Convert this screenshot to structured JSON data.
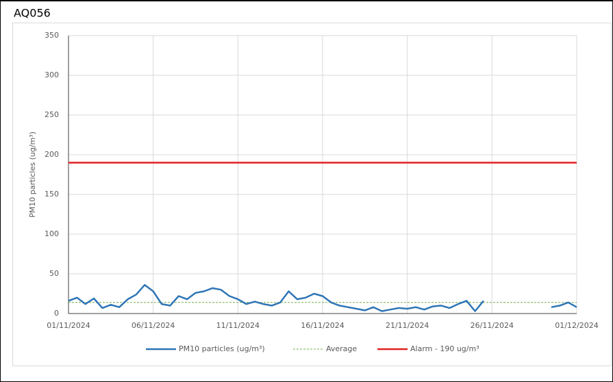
{
  "title": "AQ056",
  "chart_data": {
    "type": "line",
    "ylabel": "PM10 particles (ug/m³)",
    "xlim": [
      0,
      30
    ],
    "xticks": [
      {
        "value": 0,
        "label": "01/11/2024"
      },
      {
        "value": 5,
        "label": "06/11/2024"
      },
      {
        "value": 10,
        "label": "11/11/2024"
      },
      {
        "value": 15,
        "label": "16/11/2024"
      },
      {
        "value": 20,
        "label": "21/11/2024"
      },
      {
        "value": 25,
        "label": "26/11/2024"
      },
      {
        "value": 30,
        "label": "01/12/2024"
      }
    ],
    "ylim": [
      0,
      350
    ],
    "yticks": [
      0,
      50,
      100,
      150,
      200,
      250,
      300,
      350
    ],
    "grid": true,
    "legend": "bottom",
    "x": [
      0,
      0.5,
      1,
      1.5,
      2,
      2.5,
      3,
      3.5,
      4,
      4.5,
      5,
      5.5,
      6,
      6.5,
      7,
      7.5,
      8,
      8.5,
      9,
      9.5,
      10,
      10.5,
      11,
      11.5,
      12,
      12.5,
      13,
      13.5,
      14,
      14.5,
      15,
      15.5,
      16,
      16.5,
      17,
      17.5,
      18,
      18.5,
      19,
      19.5,
      20,
      20.5,
      21,
      21.5,
      22,
      22.5,
      23,
      23.5,
      24,
      24.5,
      25,
      25.5,
      26,
      26.5,
      27,
      27.5,
      28,
      28.5,
      29,
      29.5,
      30
    ],
    "series": [
      {
        "name": "PM10 particles (ug/m³)",
        "color": "#2e75b6",
        "values": [
          16,
          20,
          12,
          19,
          7,
          11,
          8,
          18,
          24,
          36,
          28,
          12,
          10,
          22,
          18,
          26,
          28,
          32,
          30,
          22,
          18,
          12,
          15,
          12,
          10,
          14,
          28,
          18,
          20,
          25,
          22,
          14,
          10,
          8,
          6,
          4,
          8,
          3,
          5,
          7,
          6,
          8,
          5,
          9,
          10,
          7,
          12,
          16,
          3,
          16,
          null,
          null,
          null,
          null,
          null,
          null,
          null,
          8,
          10,
          14,
          8
        ]
      }
    ],
    "reference_lines": [
      {
        "name": "Average",
        "color": "#70ad47",
        "value": 14,
        "style": "dashed"
      },
      {
        "name": "Alarm - 190 ug/m³",
        "color": "#e02020",
        "value": 190,
        "style": "solid"
      }
    ]
  }
}
